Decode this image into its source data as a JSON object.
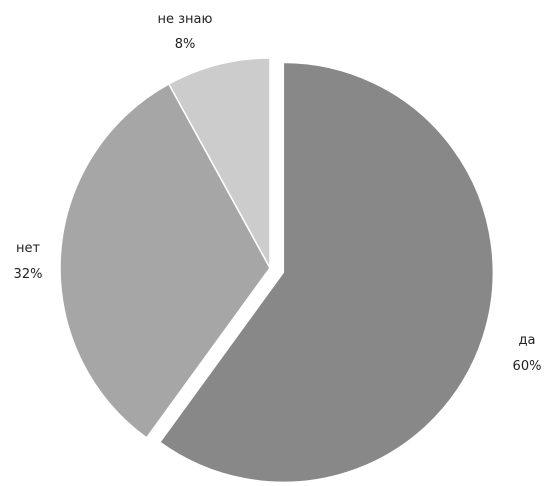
{
  "chart_data": {
    "type": "pie",
    "title": "",
    "slices": [
      {
        "label": "да",
        "value": 60,
        "pct_label": "60%",
        "color": "#888888",
        "exploded": true
      },
      {
        "label": "нет",
        "value": 32,
        "pct_label": "32%",
        "color": "#a6a6a6",
        "exploded": false
      },
      {
        "label": "не знаю",
        "value": 8,
        "pct_label": "8%",
        "color": "#cccccc",
        "exploded": false
      }
    ],
    "legend": "none",
    "start": "12 o'clock",
    "direction": "clockwise"
  }
}
